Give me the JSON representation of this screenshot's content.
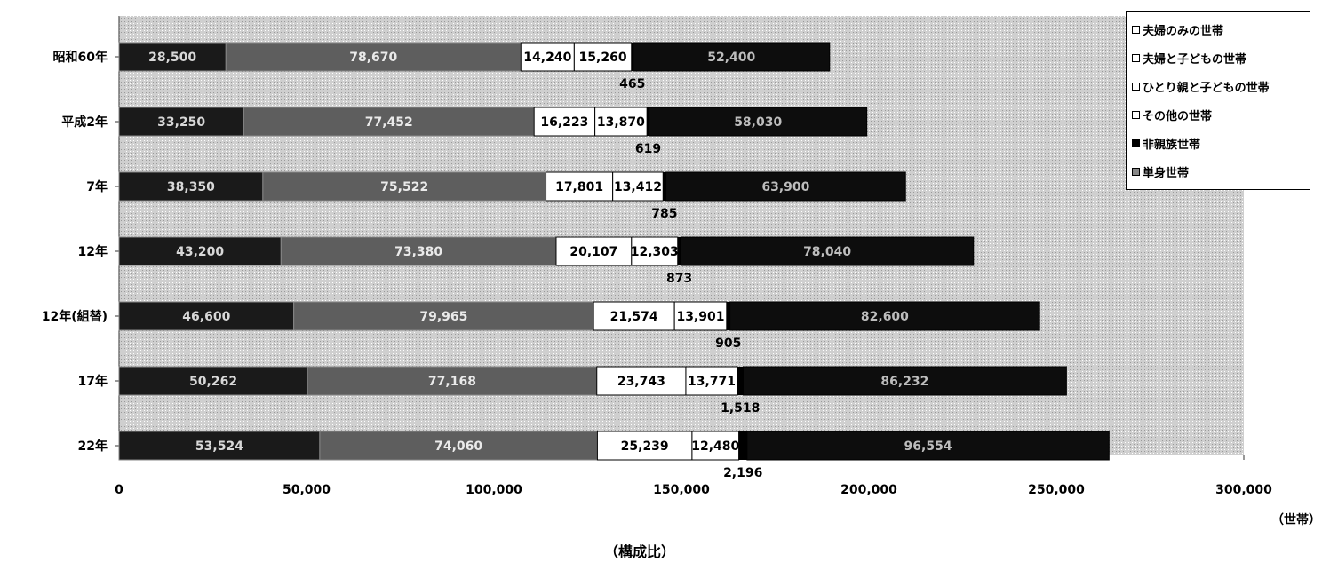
{
  "chart_data": {
    "type": "bar",
    "orientation": "horizontal",
    "stacked": true,
    "categories": [
      "昭和60年",
      "平成2年",
      "7年",
      "12年",
      "12年(組替)",
      "17年",
      "22年"
    ],
    "series": [
      {
        "name": "夫婦のみの世帯",
        "color": "#1a1a1a",
        "values": [
          28500,
          33250,
          38350,
          43200,
          46600,
          50262,
          53524
        ],
        "labels": [
          "28,500",
          "33,250",
          "38,350",
          "43,200",
          "46,600",
          "50,262",
          "53,524"
        ]
      },
      {
        "name": "夫婦と子どもの世帯",
        "color": "#5e5e5e",
        "values": [
          78670,
          77452,
          75522,
          73380,
          79965,
          77168,
          74060
        ],
        "labels": [
          "78,670",
          "77,452",
          "75,522",
          "73,380",
          "79,965",
          "77,168",
          "74,060"
        ]
      },
      {
        "name": "ひとり親と子どもの世帯",
        "color": "#ffffff",
        "values": [
          14240,
          16223,
          17801,
          20107,
          21574,
          23743,
          25239
        ],
        "labels": [
          "14,240",
          "16,223",
          "17,801",
          "20,107",
          "21,574",
          "23,743",
          "25,239"
        ]
      },
      {
        "name": "その他の世帯",
        "color": "#ffffff",
        "values": [
          15260,
          13870,
          13412,
          12303,
          13901,
          13771,
          12480
        ],
        "labels": [
          "15,260",
          "13,870",
          "13,412",
          "12,303",
          "13,901",
          "13,771",
          "12,480"
        ]
      },
      {
        "name": "非親族世帯",
        "color": "#000000",
        "values": [
          465,
          619,
          785,
          873,
          905,
          1518,
          2196
        ],
        "labels": [
          "465",
          "619",
          "785",
          "873",
          "905",
          "1,518",
          "2,196"
        ]
      },
      {
        "name": "単身世帯",
        "color": "#0d0d0d",
        "values": [
          52400,
          58030,
          63900,
          78040,
          82600,
          86232,
          96554
        ],
        "labels": [
          "52,400",
          "58,030",
          "63,900",
          "78,040",
          "82,600",
          "86,232",
          "96,554"
        ]
      }
    ],
    "xlim": [
      0,
      300000
    ],
    "xticks": [
      "0",
      "50,000",
      "100,000",
      "150,000",
      "200,000",
      "250,000",
      "300,000"
    ],
    "xtick_values": [
      0,
      50000,
      100000,
      150000,
      200000,
      250000,
      300000
    ],
    "legend_position": "top-right",
    "unit_label": "（世帯）",
    "subtitle": "（構成比）",
    "plot_background": "#d2d2d2"
  }
}
